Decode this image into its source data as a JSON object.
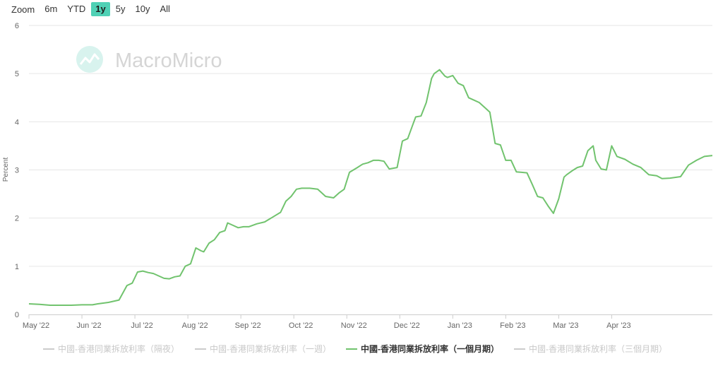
{
  "zoom": {
    "label": "Zoom",
    "buttons": [
      "6m",
      "YTD",
      "1y",
      "5y",
      "10y",
      "All"
    ],
    "active": "1y"
  },
  "watermark": {
    "text": "MacroMicro"
  },
  "colors": {
    "series": "#71c36e",
    "inactive": "#cccccc",
    "grid": "#e6e6e6",
    "accent": "#4fd1b5"
  },
  "chart_data": {
    "type": "line",
    "title": "",
    "xlabel": "",
    "ylabel": "Percent",
    "ylim": [
      0,
      6
    ],
    "yticks": [
      "0",
      "1",
      "2",
      "3",
      "4",
      "5",
      "6"
    ],
    "xticks": [
      "May '22",
      "Jun '22",
      "Jul '22",
      "Aug '22",
      "Sep '22",
      "Oct '22",
      "Nov '22",
      "Dec '22",
      "Jan '23",
      "Feb '23",
      "Mar '23",
      "Apr '23"
    ],
    "x_range_months": [
      0,
      12.9
    ],
    "legend": [
      {
        "name": "中國-香港同業拆放利率（隔夜）",
        "visible": false
      },
      {
        "name": "中國-香港同業拆放利率（一週）",
        "visible": false
      },
      {
        "name": "中國-香港同業拆放利率（一個月期）",
        "visible": true
      },
      {
        "name": "中國-香港同業拆放利率（三個月期）",
        "visible": false
      }
    ],
    "series": [
      {
        "name": "中國-香港同業拆放利率（一個月期）",
        "x": [
          0,
          0.2,
          0.4,
          0.6,
          0.8,
          1.0,
          1.2,
          1.3,
          1.5,
          1.7,
          1.85,
          1.95,
          2.05,
          2.15,
          2.25,
          2.35,
          2.45,
          2.55,
          2.65,
          2.75,
          2.85,
          2.95,
          3.05,
          3.15,
          3.25,
          3.3,
          3.4,
          3.5,
          3.6,
          3.7,
          3.75,
          3.85,
          3.95,
          4.05,
          4.15,
          4.3,
          4.45,
          4.6,
          4.75,
          4.85,
          4.95,
          5.05,
          5.15,
          5.3,
          5.45,
          5.6,
          5.75,
          5.85,
          5.95,
          6.05,
          6.2,
          6.3,
          6.4,
          6.5,
          6.6,
          6.7,
          6.8,
          6.95,
          7.05,
          7.15,
          7.25,
          7.3,
          7.4,
          7.5,
          7.6,
          7.65,
          7.75,
          7.85,
          7.9,
          8.0,
          8.1,
          8.2,
          8.3,
          8.4,
          8.5,
          8.6,
          8.7,
          8.8,
          8.9,
          9.0,
          9.1,
          9.2,
          9.3,
          9.4,
          9.5,
          9.6,
          9.7,
          9.8,
          9.9,
          10.0,
          10.1,
          10.15,
          10.25,
          10.35,
          10.45,
          10.55,
          10.65,
          10.7,
          10.8,
          10.9,
          11.0,
          11.1,
          11.25,
          11.4,
          11.55,
          11.7,
          11.85,
          11.95,
          12.1,
          12.3,
          12.45,
          12.6,
          12.75,
          12.9
        ],
        "values": [
          0.22,
          0.21,
          0.19,
          0.19,
          0.19,
          0.2,
          0.2,
          0.22,
          0.25,
          0.3,
          0.6,
          0.65,
          0.88,
          0.9,
          0.87,
          0.85,
          0.8,
          0.75,
          0.74,
          0.78,
          0.8,
          1.0,
          1.05,
          1.38,
          1.32,
          1.3,
          1.48,
          1.55,
          1.7,
          1.74,
          1.9,
          1.85,
          1.8,
          1.82,
          1.82,
          1.88,
          1.92,
          2.02,
          2.12,
          2.35,
          2.45,
          2.6,
          2.62,
          2.62,
          2.6,
          2.45,
          2.42,
          2.52,
          2.6,
          2.95,
          3.05,
          3.12,
          3.15,
          3.2,
          3.2,
          3.18,
          3.02,
          3.05,
          3.6,
          3.65,
          3.95,
          4.1,
          4.12,
          4.4,
          4.9,
          5.0,
          5.08,
          4.95,
          4.92,
          4.96,
          4.8,
          4.75,
          4.5,
          4.45,
          4.4,
          4.3,
          4.2,
          3.55,
          3.52,
          3.2,
          3.2,
          2.96,
          2.95,
          2.94,
          2.7,
          2.45,
          2.42,
          2.25,
          2.1,
          2.4,
          2.85,
          2.9,
          2.98,
          3.05,
          3.08,
          3.4,
          3.5,
          3.2,
          3.02,
          3.0,
          3.5,
          3.28,
          3.22,
          3.12,
          3.05,
          2.9,
          2.88,
          2.82,
          2.83,
          2.86,
          3.1,
          3.2,
          3.28,
          3.3
        ]
      }
    ]
  }
}
